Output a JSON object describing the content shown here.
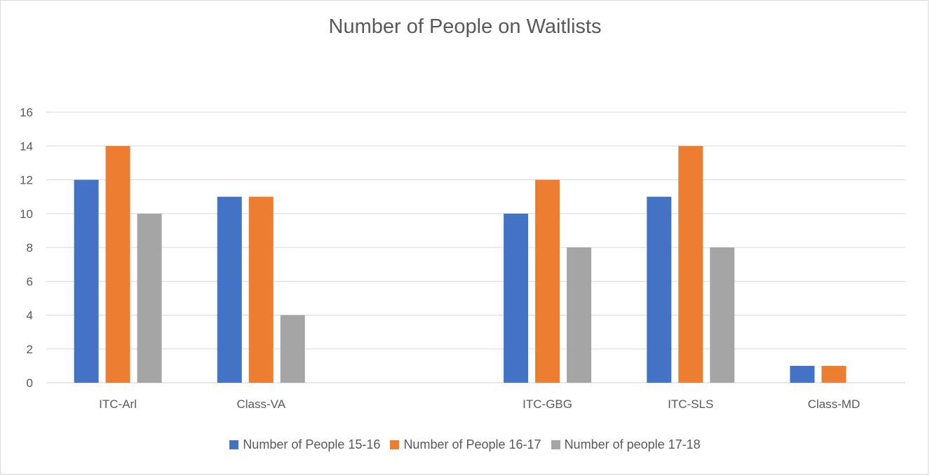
{
  "chart_data": {
    "type": "bar",
    "title": "Number of People on Waitlists",
    "categories": [
      "ITC-Arl",
      "Class-VA",
      "",
      "ITC-GBG",
      "ITC-SLS",
      "Class-MD"
    ],
    "series": [
      {
        "name": "Number of People 15-16",
        "color": "#4472C4",
        "values": [
          12,
          11,
          null,
          10,
          11,
          1
        ]
      },
      {
        "name": "Number of People 16-17",
        "color": "#ED7D31",
        "values": [
          14,
          11,
          null,
          12,
          14,
          1
        ]
      },
      {
        "name": "Number of people 17-18",
        "color": "#A5A5A5",
        "values": [
          10,
          4,
          null,
          8,
          8,
          null
        ]
      }
    ],
    "ylim": [
      0,
      16
    ],
    "yticks": [
      0,
      2,
      4,
      6,
      8,
      10,
      12,
      14,
      16
    ],
    "grid": true,
    "legend_position": "bottom"
  }
}
